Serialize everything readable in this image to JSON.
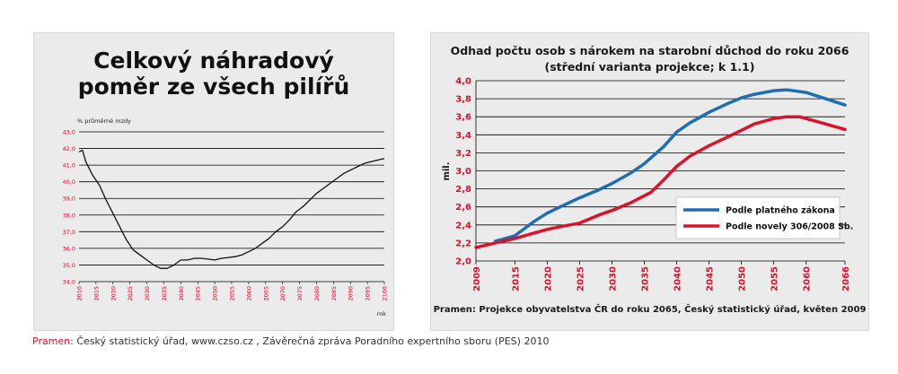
{
  "footer": {
    "label": "Pramen:",
    "text": "Český statistický úřad, www.czso.cz , Závěrečná zpráva Poradního expertního sboru (PES) 2010"
  },
  "colors": {
    "red": "#d9132c",
    "blue": "#1f6db5",
    "line": "#111111",
    "grid": "#000000"
  },
  "chart_data": [
    {
      "type": "line",
      "title": "Celkový náhradový poměr ze všech pilířů",
      "title_lines": [
        "Celkový náhradový",
        "poměr ze všech pilířů"
      ],
      "ylabel": "% průměrné mzdy",
      "xlabel": "rok",
      "ylim": [
        34.0,
        43.0
      ],
      "xlim": [
        2010,
        2100
      ],
      "grid": true,
      "yticks": [
        "34,0",
        "35,0",
        "36,0",
        "37,0",
        "38,0",
        "39,0",
        "40,0",
        "41,0",
        "42,0",
        "43,0"
      ],
      "xticks": [
        "2010",
        "2015",
        "2020",
        "2025",
        "2030",
        "2035",
        "2040",
        "2045",
        "2050",
        "2055",
        "2060",
        "2065",
        "2070",
        "2075",
        "2080",
        "2085",
        "2090",
        "2095",
        "2100"
      ],
      "series": [
        {
          "x": [
            2010,
            2011,
            2012,
            2014,
            2016,
            2018,
            2020,
            2022,
            2024,
            2026,
            2028,
            2030,
            2032,
            2034,
            2036,
            2038,
            2040,
            2042,
            2044,
            2046,
            2048,
            2050,
            2052,
            2054,
            2056,
            2058,
            2060,
            2062,
            2064,
            2066,
            2068,
            2070,
            2072,
            2074,
            2076,
            2078,
            2080,
            2082,
            2084,
            2086,
            2088,
            2090,
            2092,
            2094,
            2096,
            2098,
            2100
          ],
          "values": [
            41.8,
            41.9,
            41.2,
            40.4,
            39.8,
            38.9,
            38.1,
            37.3,
            36.5,
            35.9,
            35.6,
            35.3,
            35.0,
            34.8,
            34.8,
            35.0,
            35.3,
            35.3,
            35.4,
            35.4,
            35.35,
            35.3,
            35.4,
            35.45,
            35.5,
            35.6,
            35.8,
            36.0,
            36.3,
            36.6,
            37.0,
            37.3,
            37.7,
            38.2,
            38.5,
            38.9,
            39.3,
            39.6,
            39.9,
            40.2,
            40.5,
            40.7,
            40.9,
            41.1,
            41.2,
            41.3,
            41.4
          ]
        }
      ]
    },
    {
      "type": "line",
      "title": "Odhad počtu osob s nárokem na starobní důchod do roku 2066",
      "subtitle": "(střední varianta projekce; k 1.1)",
      "ylabel": "mil.",
      "ylim": [
        2.0,
        4.0
      ],
      "xlim": [
        2009,
        2066
      ],
      "grid": true,
      "legend_position": "lower-right",
      "yticks": [
        "2,0",
        "2,2",
        "2,4",
        "2,6",
        "2,8",
        "3,0",
        "3,2",
        "3,4",
        "3,6",
        "3,8",
        "4,0"
      ],
      "xticks": [
        {
          "label": "2009",
          "value": 2009
        },
        {
          "label": "2015",
          "value": 2015
        },
        {
          "label": "2020",
          "value": 2020
        },
        {
          "label": "2025",
          "value": 2025
        },
        {
          "label": "2030",
          "value": 2030
        },
        {
          "label": "2035",
          "value": 2035
        },
        {
          "label": "2040",
          "value": 2040
        },
        {
          "label": "2045",
          "value": 2045
        },
        {
          "label": "2050",
          "value": 2050
        },
        {
          "label": "2055",
          "value": 2055
        },
        {
          "label": "2060",
          "value": 2060
        },
        {
          "label": "2066",
          "value": 2066
        }
      ],
      "source": "Pramen: Projekce obyvatelstva ČR do roku 2065, Český statistický úřad, květen 2009",
      "series": [
        {
          "name": "Podle platného zákona",
          "color": "#1f6db5",
          "x": [
            2012,
            2015,
            2018,
            2020,
            2022,
            2025,
            2028,
            2030,
            2033,
            2035,
            2038,
            2040,
            2042,
            2045,
            2048,
            2050,
            2052,
            2055,
            2057,
            2060,
            2063,
            2066
          ],
          "values": [
            2.22,
            2.28,
            2.44,
            2.53,
            2.6,
            2.7,
            2.79,
            2.86,
            2.98,
            3.08,
            3.27,
            3.43,
            3.53,
            3.65,
            3.75,
            3.81,
            3.85,
            3.89,
            3.9,
            3.87,
            3.8,
            3.73
          ]
        },
        {
          "name": "Podle novely 306/2008 Sb.",
          "color": "#d9132c",
          "x": [
            2009,
            2012,
            2015,
            2018,
            2020,
            2022,
            2025,
            2028,
            2030,
            2033,
            2036,
            2038,
            2040,
            2042,
            2045,
            2048,
            2050,
            2052,
            2055,
            2057,
            2059,
            2062,
            2066
          ],
          "values": [
            2.15,
            2.2,
            2.25,
            2.31,
            2.35,
            2.38,
            2.42,
            2.51,
            2.56,
            2.65,
            2.76,
            2.9,
            3.05,
            3.16,
            3.28,
            3.38,
            3.45,
            3.52,
            3.58,
            3.6,
            3.6,
            3.54,
            3.46
          ]
        }
      ]
    }
  ]
}
